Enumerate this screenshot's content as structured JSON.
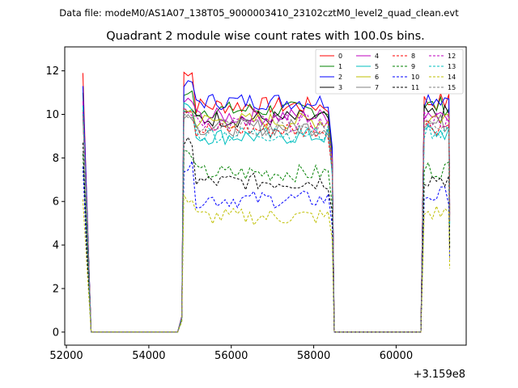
{
  "header": {
    "data_file": "Data file: modeM0/AS1A07_138T05_9000003410_23102cztM0_level2_quad_clean.evt"
  },
  "chart_data": {
    "type": "line",
    "title": "Quadrant 2 module wise count rates with 100.0s bins.",
    "xlabel": "",
    "ylabel": "",
    "x_offset_label": "+3.159e8",
    "xlim": [
      51960,
      61700
    ],
    "ylim": [
      -0.6,
      13.1
    ],
    "xticks": [
      52000,
      54000,
      56000,
      58000,
      60000
    ],
    "yticks": [
      0,
      2,
      4,
      6,
      8,
      10,
      12
    ],
    "legend_position": "upper right",
    "segments": [
      {
        "start": 52400,
        "end": 52600
      },
      {
        "start": 54700,
        "end": 58500
      },
      {
        "start": 60600,
        "end": 61300
      }
    ],
    "series": [
      {
        "name": "0",
        "color": "#ff0000",
        "style": "solid",
        "level": 10.4,
        "peak": 11.9
      },
      {
        "name": "1",
        "color": "#008000",
        "style": "solid",
        "level": 10.2,
        "peak": 11.0
      },
      {
        "name": "2",
        "color": "#0000ff",
        "style": "solid",
        "level": 10.6,
        "peak": 11.3
      },
      {
        "name": "3",
        "color": "#000000",
        "style": "solid",
        "level": 9.8,
        "peak": 10.0
      },
      {
        "name": "4",
        "color": "#bf00bf",
        "style": "solid",
        "level": 9.9,
        "peak": 10.6
      },
      {
        "name": "5",
        "color": "#00bfbf",
        "style": "solid",
        "level": 9.0,
        "peak": 10.4
      },
      {
        "name": "6",
        "color": "#bfbf00",
        "style": "solid",
        "level": 9.7,
        "peak": 10.2
      },
      {
        "name": "7",
        "color": "#808080",
        "style": "solid",
        "level": 9.4,
        "peak": 10.0
      },
      {
        "name": "8",
        "color": "#ff0000",
        "style": "dashed",
        "level": 9.3,
        "peak": 10.2
      },
      {
        "name": "9",
        "color": "#008000",
        "style": "dashed",
        "level": 7.3,
        "peak": 8.2
      },
      {
        "name": "10",
        "color": "#0000ff",
        "style": "dashed",
        "level": 6.1,
        "peak": 7.6
      },
      {
        "name": "11",
        "color": "#000000",
        "style": "dashed",
        "level": 6.9,
        "peak": 8.7
      },
      {
        "name": "12",
        "color": "#bf00bf",
        "style": "dashed",
        "level": 9.6,
        "peak": 10.1
      },
      {
        "name": "13",
        "color": "#00bfbf",
        "style": "dashed",
        "level": 9.1,
        "peak": 10.4
      },
      {
        "name": "14",
        "color": "#bfbf00",
        "style": "dashed",
        "level": 5.3,
        "peak": 6.1
      },
      {
        "name": "15",
        "color": "#808080",
        "style": "dashed",
        "level": 9.4,
        "peak": 9.9
      }
    ]
  }
}
